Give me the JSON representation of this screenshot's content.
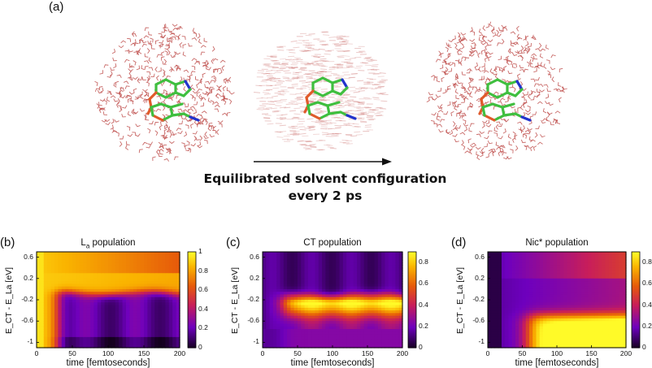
{
  "panel_a": {
    "label": "(a)",
    "caption_line1": "Equilibrated solvent configuration",
    "caption_line2": "every 2 ps"
  },
  "colors": {
    "water": "#c0504d",
    "carbon": "#3fbf3f",
    "oxygen": "#e05a2b",
    "nitrogen": "#2233cc"
  },
  "chart_data": [
    {
      "type": "heatmap",
      "label": "(b)",
      "title_main": "L",
      "title_sub": "a",
      "title_rest": " population",
      "xlabel": "time [femtoseconds]",
      "ylabel": "E_CT - E_La [eV]",
      "x_ticks": [
        "0",
        "50",
        "100",
        "150",
        "200"
      ],
      "y_ticks": [
        "0.6",
        "0.2",
        "-0.2",
        "-0.6",
        "-1"
      ],
      "colorbar_ticks": [
        "1",
        "0.8",
        "0.6",
        "0.4",
        "0.2",
        "0"
      ],
      "xlim": [
        0,
        200
      ],
      "ylim": [
        -1.1,
        0.7
      ],
      "zlim": [
        0,
        1
      ]
    },
    {
      "type": "heatmap",
      "label": "(c)",
      "title_main": "CT population",
      "title_sub": "",
      "title_rest": "",
      "xlabel": "time [femtoseconds]",
      "ylabel": "E_CT - E_La [eV]",
      "x_ticks": [
        "0",
        "50",
        "100",
        "150",
        "200"
      ],
      "y_ticks": [
        "0.6",
        "0.2",
        "-0.2",
        "-0.6",
        "-1"
      ],
      "colorbar_ticks": [
        "0.8",
        "0.6",
        "0.4",
        "0.2",
        "0"
      ],
      "xlim": [
        0,
        200
      ],
      "ylim": [
        -1.1,
        0.7
      ],
      "zlim": [
        0,
        0.9
      ]
    },
    {
      "type": "heatmap",
      "label": "(d)",
      "title_main": "Nic* population",
      "title_sub": "",
      "title_rest": "",
      "xlabel": "time [femtoseconds]",
      "ylabel": "E_CT - E_La [eV]",
      "x_ticks": [
        "0",
        "50",
        "100",
        "150",
        "200"
      ],
      "y_ticks": [
        "0.6",
        "0.2",
        "-0.2",
        "-0.6",
        "-1"
      ],
      "colorbar_ticks": [
        "0.8",
        "0.6",
        "0.4",
        "0.2",
        "0"
      ],
      "xlim": [
        0,
        200
      ],
      "ylim": [
        -1.1,
        0.7
      ],
      "zlim": [
        0,
        0.9
      ]
    }
  ]
}
